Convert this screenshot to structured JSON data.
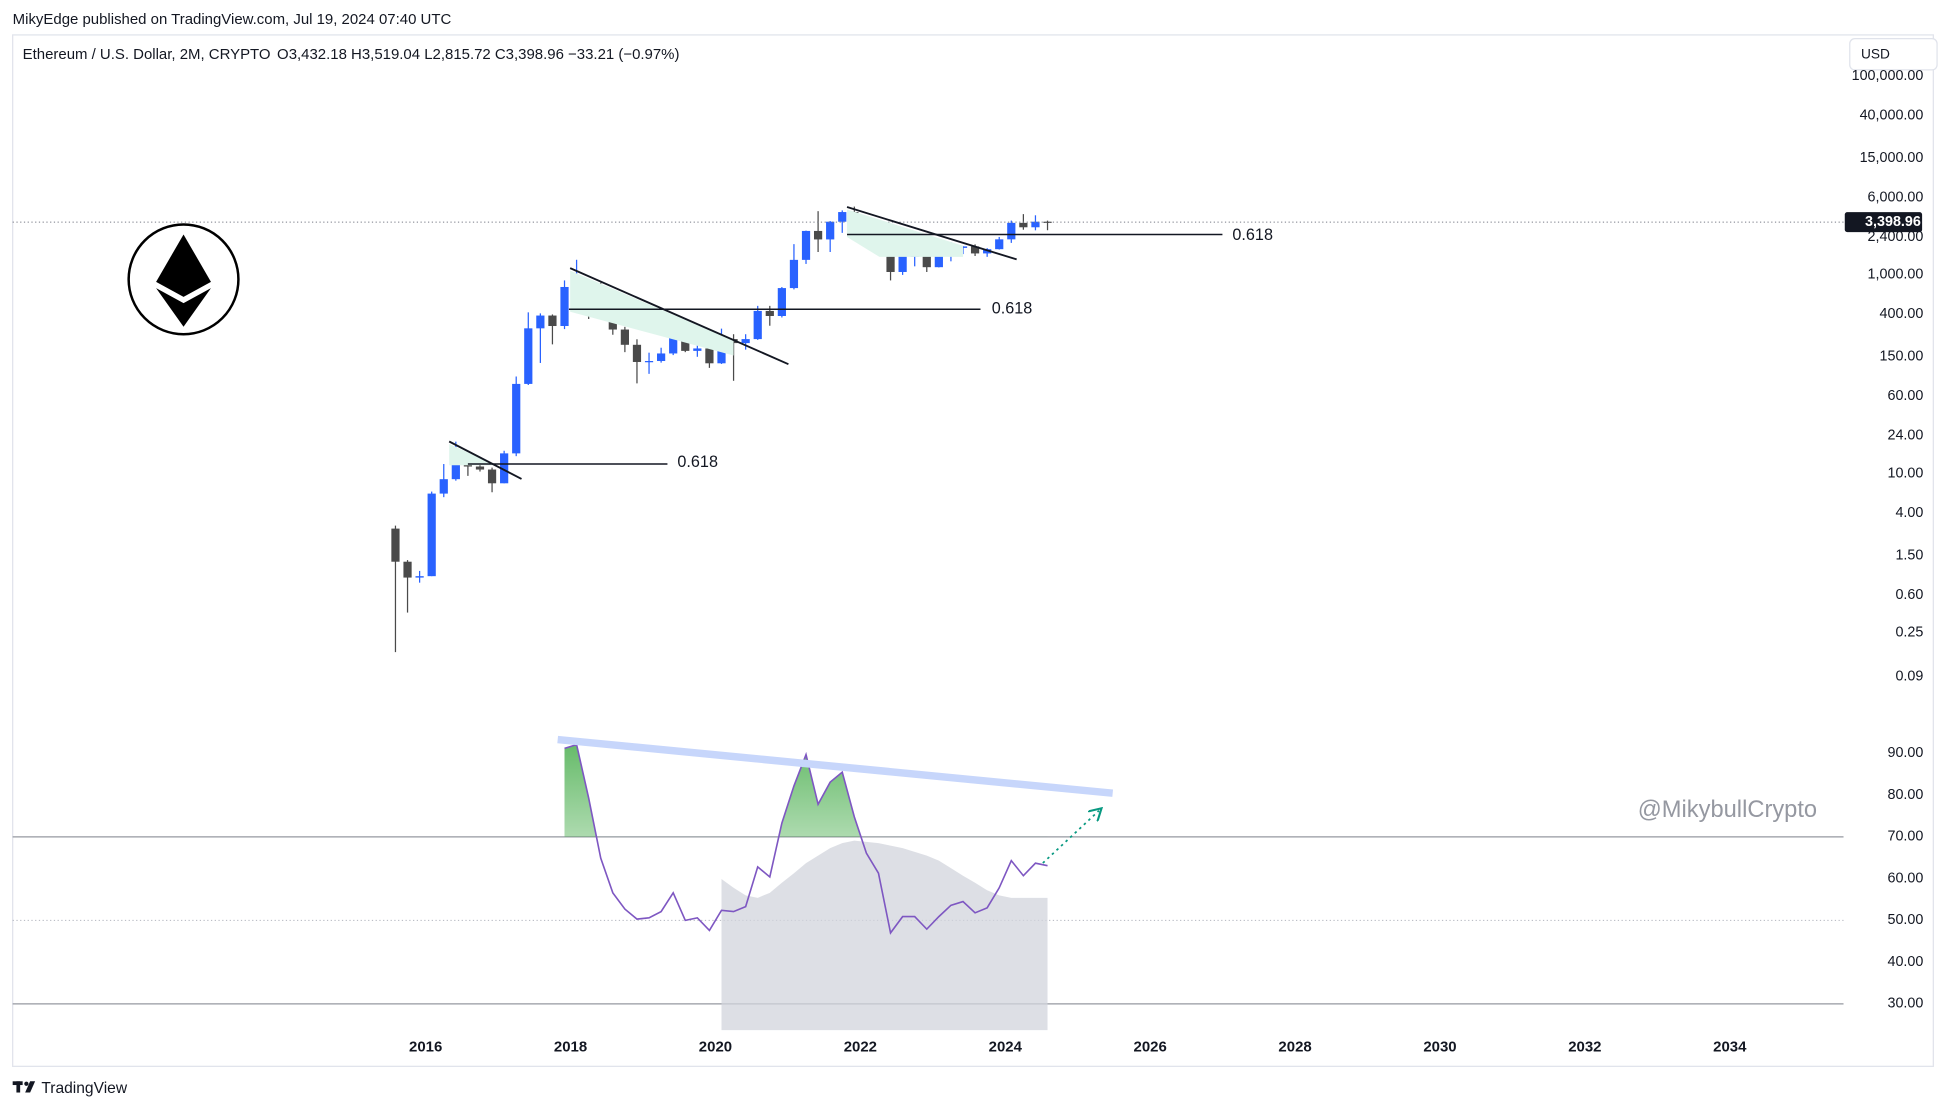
{
  "header": {
    "published": "MikyEdge published on TradingView.com, Jul 19, 2024 07:40 UTC",
    "symbol": "Ethereum / U.S. Dollar, 2M, CRYPTO",
    "ohlc": "O3,432.18  H3,519.04  L2,815.72  C3,398.96  −33.21 (−0.97%)",
    "currency": "USD"
  },
  "watermark": "@MikybullCrypto",
  "footer": "TradingView",
  "chart_data": [
    {
      "type": "candlestick",
      "log_scale": true,
      "up_color": "#2962ff",
      "down_color": "#4a4a4a",
      "x": [
        "2015-07",
        "2015-09",
        "2015-11",
        "2016-01",
        "2016-03",
        "2016-05",
        "2016-07",
        "2016-09",
        "2016-11",
        "2017-01",
        "2017-03",
        "2017-05",
        "2017-07",
        "2017-09",
        "2017-11",
        "2018-01",
        "2018-03",
        "2018-05",
        "2018-07",
        "2018-09",
        "2018-11",
        "2019-01",
        "2019-03",
        "2019-05",
        "2019-07",
        "2019-09",
        "2019-11",
        "2020-01",
        "2020-03",
        "2020-05",
        "2020-07",
        "2020-09",
        "2020-11",
        "2021-01",
        "2021-03",
        "2021-05",
        "2021-07",
        "2021-09",
        "2021-11",
        "2022-01",
        "2022-03",
        "2022-05",
        "2022-07",
        "2022-09",
        "2022-11",
        "2023-01",
        "2023-03",
        "2023-05",
        "2023-07",
        "2023-09",
        "2023-11",
        "2024-01",
        "2024-03",
        "2024-05",
        "2024-07"
      ],
      "open": [
        2.8,
        1.3,
        0.9,
        0.93,
        6.3,
        8.8,
        12.5,
        11.8,
        11,
        8,
        16,
        80,
        290,
        390,
        306,
        756,
        856,
        669,
        454,
        282,
        198,
        133,
        136,
        162,
        290,
        172,
        182,
        129,
        226,
        206,
        226,
        434,
        386,
        737,
        1417,
        2770,
        2275,
        3430,
        4290,
        3680,
        2920,
        2730,
        1070,
        1550,
        1570,
        1196,
        1605,
        1870,
        1935,
        1645,
        1815,
        2280,
        3340,
        3015,
        3432.18
      ],
      "high": [
        3.0,
        1.35,
        1.05,
        6.6,
        12.5,
        21,
        14.5,
        14,
        11.5,
        17,
        95,
        420,
        410,
        400,
        880,
        1420,
        880,
        835,
        516,
        300,
        225,
        165,
        185,
        360,
        320,
        224,
        194,
        288,
        253,
        253,
        488,
        488,
        755,
        2040,
        2790,
        4380,
        3480,
        4460,
        4870,
        3880,
        3580,
        2950,
        2030,
        1680,
        1680,
        1740,
        2140,
        1950,
        2030,
        1860,
        2410,
        3520,
        4090,
        3980,
        3519.04
      ],
      "low": [
        0.16,
        0.4,
        0.8,
        0.93,
        5.8,
        8.5,
        9.5,
        10.5,
        6.5,
        8,
        15,
        78,
        130,
        200,
        285,
        570,
        360,
        410,
        250,
        167,
        81,
        101,
        131,
        156,
        167,
        150,
        116,
        127,
        86,
        177,
        222,
        308,
        373,
        715,
        1290,
        1700,
        1700,
        2650,
        3500,
        2160,
        2440,
        880,
        1000,
        1220,
        1070,
        1190,
        1370,
        1620,
        1550,
        1520,
        1800,
        2100,
        2850,
        2810,
        2815.72
      ],
      "close": [
        1.3,
        0.9,
        0.93,
        6.3,
        8.8,
        12.5,
        11.8,
        11,
        8,
        16,
        80,
        290,
        390,
        306,
        756,
        856,
        669,
        454,
        282,
        198,
        133,
        136,
        162,
        290,
        172,
        182,
        129,
        226,
        206,
        226,
        434,
        386,
        737,
        1417,
        2770,
        2275,
        3430,
        4290,
        3680,
        2920,
        2730,
        1070,
        1550,
        1570,
        1196,
        1605,
        1870,
        1935,
        1645,
        1815,
        2280,
        3340,
        3015,
        3432.17,
        3398.96
      ],
      "last_label": "3,398.96",
      "xlim": [
        2010.3,
        2035.57
      ],
      "xticks": [
        2016,
        2018,
        2020,
        2022,
        2024,
        2026,
        2028,
        2030,
        2032,
        2034
      ],
      "ylim": [
        0.023,
        260000
      ],
      "yticks": [
        {
          "value": 0.09,
          "label": "0.09"
        },
        {
          "value": 0.25,
          "label": "0.25"
        },
        {
          "value": 0.6,
          "label": "0.60"
        },
        {
          "value": 1.5,
          "label": "1.50"
        },
        {
          "value": 4,
          "label": "4.00"
        },
        {
          "value": 10,
          "label": "10.00"
        },
        {
          "value": 24,
          "label": "24.00"
        },
        {
          "value": 60,
          "label": "60.00"
        },
        {
          "value": 150,
          "label": "150.00"
        },
        {
          "value": 400,
          "label": "400.00"
        },
        {
          "value": 1000,
          "label": "1,000.00"
        },
        {
          "value": 2400,
          "label": "2,400.00"
        },
        {
          "value": 6000,
          "label": "6,000.00"
        },
        {
          "value": 15000,
          "label": "15,000.00"
        },
        {
          "value": 40000,
          "label": "40,000.00"
        },
        {
          "value": 100000,
          "label": "100,000.00"
        }
      ],
      "annotations": [
        "0.618",
        "0.618",
        "0.618"
      ]
    },
    {
      "type": "line",
      "color": "#7e57c2",
      "ma_color": "#d1d4dc",
      "overbought_color": "#4caf50",
      "x": [
        "2017-11",
        "2018-01",
        "2018-03",
        "2018-05",
        "2018-07",
        "2018-09",
        "2018-11",
        "2019-01",
        "2019-03",
        "2019-05",
        "2019-07",
        "2019-09",
        "2019-11",
        "2020-01",
        "2020-03",
        "2020-05",
        "2020-07",
        "2020-09",
        "2020-11",
        "2021-01",
        "2021-03",
        "2021-05",
        "2021-07",
        "2021-09",
        "2021-11",
        "2022-01",
        "2022-03",
        "2022-05",
        "2022-07",
        "2022-09",
        "2022-11",
        "2023-01",
        "2023-03",
        "2023-05",
        "2023-07",
        "2023-09",
        "2023-11",
        "2024-01",
        "2024-03",
        "2024-05",
        "2024-07"
      ],
      "values": [
        91.2,
        92.1,
        79.3,
        64.9,
        56.6,
        52.7,
        50.3,
        50.6,
        52.1,
        56.6,
        50.0,
        50.6,
        47.6,
        52.4,
        52.1,
        53.3,
        62.8,
        60.4,
        73.3,
        82.2,
        89.7,
        77.8,
        83.1,
        85.5,
        74.8,
        66.1,
        61.3,
        47.0,
        50.9,
        50.9,
        47.9,
        50.9,
        53.6,
        54.5,
        51.8,
        53.0,
        57.8,
        64.3,
        60.7,
        63.7,
        63.1
      ],
      "ma_values": [
        null,
        null,
        null,
        null,
        null,
        null,
        null,
        null,
        null,
        null,
        null,
        null,
        null,
        59.9,
        57.8,
        56.0,
        55.4,
        56.6,
        59.0,
        61.3,
        63.7,
        65.5,
        67.3,
        68.5,
        69.1,
        68.8,
        68.5,
        67.9,
        67.3,
        66.4,
        65.5,
        64.3,
        62.5,
        60.7,
        59.0,
        57.2,
        56.0,
        55.4,
        55.4,
        55.4,
        55.4
      ],
      "levels": [
        70,
        50,
        30
      ],
      "ylim": [
        23.7,
        94.2
      ],
      "yticks": [
        {
          "value": 30,
          "label": "30.00"
        },
        {
          "value": 40,
          "label": "40.00"
        },
        {
          "value": 50,
          "label": "50.00"
        },
        {
          "value": 60,
          "label": "60.00"
        },
        {
          "value": 70,
          "label": "70.00"
        },
        {
          "value": 80,
          "label": "80.00"
        },
        {
          "value": 90,
          "label": "90.00"
        }
      ]
    }
  ]
}
